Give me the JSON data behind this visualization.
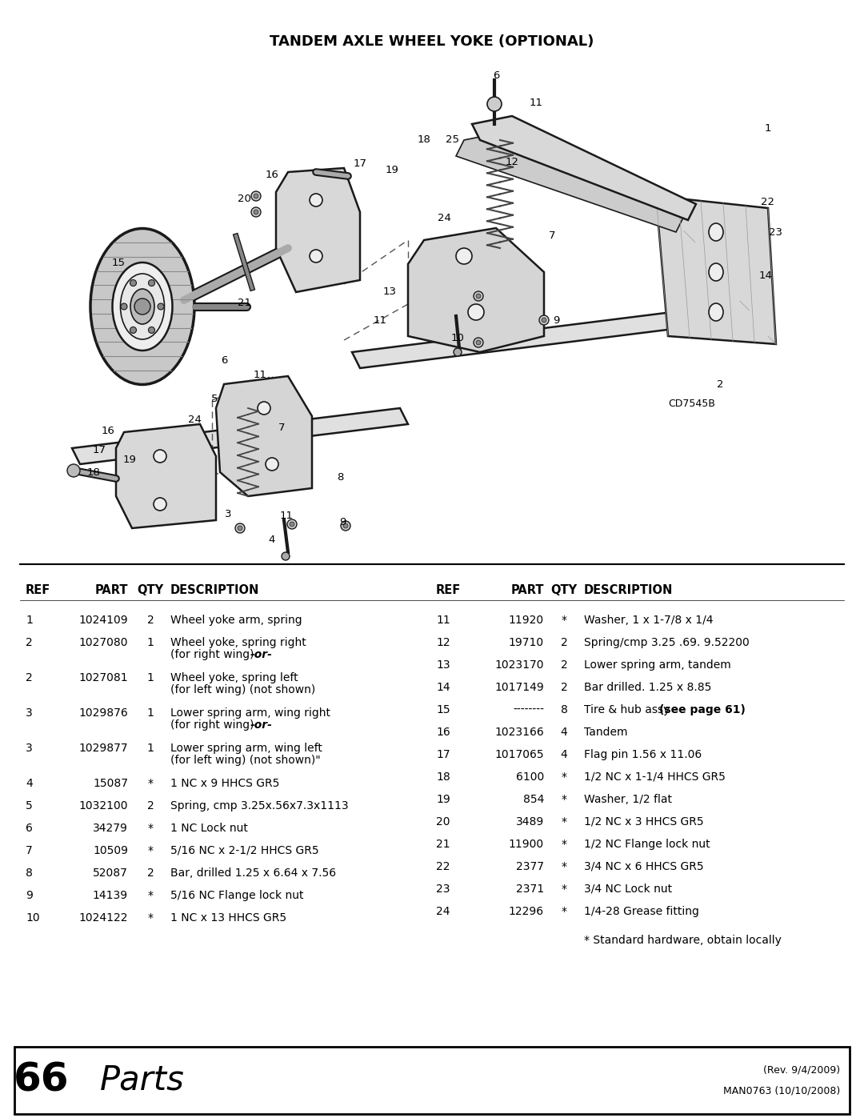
{
  "title": "TANDEM AXLE WHEEL YOKE (OPTIONAL)",
  "diagram_label": "CD7545B",
  "bg_color": "#ffffff",
  "title_fontsize": 13,
  "table_header": [
    "REF",
    "PART",
    "QTY",
    "DESCRIPTION"
  ],
  "left_parts": [
    [
      "1",
      "1024109",
      "2",
      "Wheel yoke arm, spring",
      ""
    ],
    [
      "2",
      "1027080",
      "1",
      "Wheel yoke, spring right",
      "(for right wing) -or-"
    ],
    [
      "2",
      "1027081",
      "1",
      "Wheel yoke, spring left",
      "(for left wing) (not shown)"
    ],
    [
      "3",
      "1029876",
      "1",
      "Lower spring arm, wing right",
      "(for right wing) -or-"
    ],
    [
      "3",
      "1029877",
      "1",
      "Lower spring arm, wing left",
      "(for left wing) (not shown)\""
    ],
    [
      "4",
      "15087",
      "*",
      "1 NC x 9 HHCS GR5",
      ""
    ],
    [
      "5",
      "1032100",
      "2",
      "Spring, cmp 3.25x.56x7.3x1113",
      ""
    ],
    [
      "6",
      "34279",
      "*",
      "1 NC Lock nut",
      ""
    ],
    [
      "7",
      "10509",
      "*",
      "5/16 NC x 2-1/2 HHCS GR5",
      ""
    ],
    [
      "8",
      "52087",
      "2",
      "Bar, drilled 1.25 x 6.64 x 7.56",
      ""
    ],
    [
      "9",
      "14139",
      "*",
      "5/16 NC Flange lock nut",
      ""
    ],
    [
      "10",
      "1024122",
      "*",
      "1 NC x 13 HHCS GR5",
      ""
    ]
  ],
  "right_parts": [
    [
      "11",
      "11920",
      "*",
      "Washer, 1 x 1-7/8 x 1/4"
    ],
    [
      "12",
      "19710",
      "2",
      "Spring/cmp 3.25 .69. 9.52200"
    ],
    [
      "13",
      "1023170",
      "2",
      "Lower spring arm, tandem"
    ],
    [
      "14",
      "1017149",
      "2",
      "Bar drilled. 1.25 x 8.85"
    ],
    [
      "15",
      "--------",
      "8",
      "Tire & hub assy (see page 61)"
    ],
    [
      "16",
      "1023166",
      "4",
      "Tandem"
    ],
    [
      "17",
      "1017065",
      "4",
      "Flag pin 1.56 x 11.06"
    ],
    [
      "18",
      "6100",
      "*",
      "1/2 NC x 1-1/4 HHCS GR5"
    ],
    [
      "19",
      "854",
      "*",
      "Washer, 1/2 flat"
    ],
    [
      "20",
      "3489",
      "*",
      "1/2 NC x 3 HHCS GR5"
    ],
    [
      "21",
      "11900",
      "*",
      "1/2 NC Flange lock nut"
    ],
    [
      "22",
      "2377",
      "*",
      "3/4 NC x 6 HHCS GR5"
    ],
    [
      "23",
      "2371",
      "*",
      "3/4 NC Lock nut"
    ],
    [
      "24",
      "12296",
      "*",
      "1/4-28 Grease fitting"
    ]
  ],
  "footnote": "* Standard hardware, obtain locally",
  "footer_left_number": "66",
  "footer_left_text": "Parts",
  "footer_right_line1": "(Rev. 9/4/2009)",
  "footer_right_line2": "MAN0763 (10/10/2008)"
}
